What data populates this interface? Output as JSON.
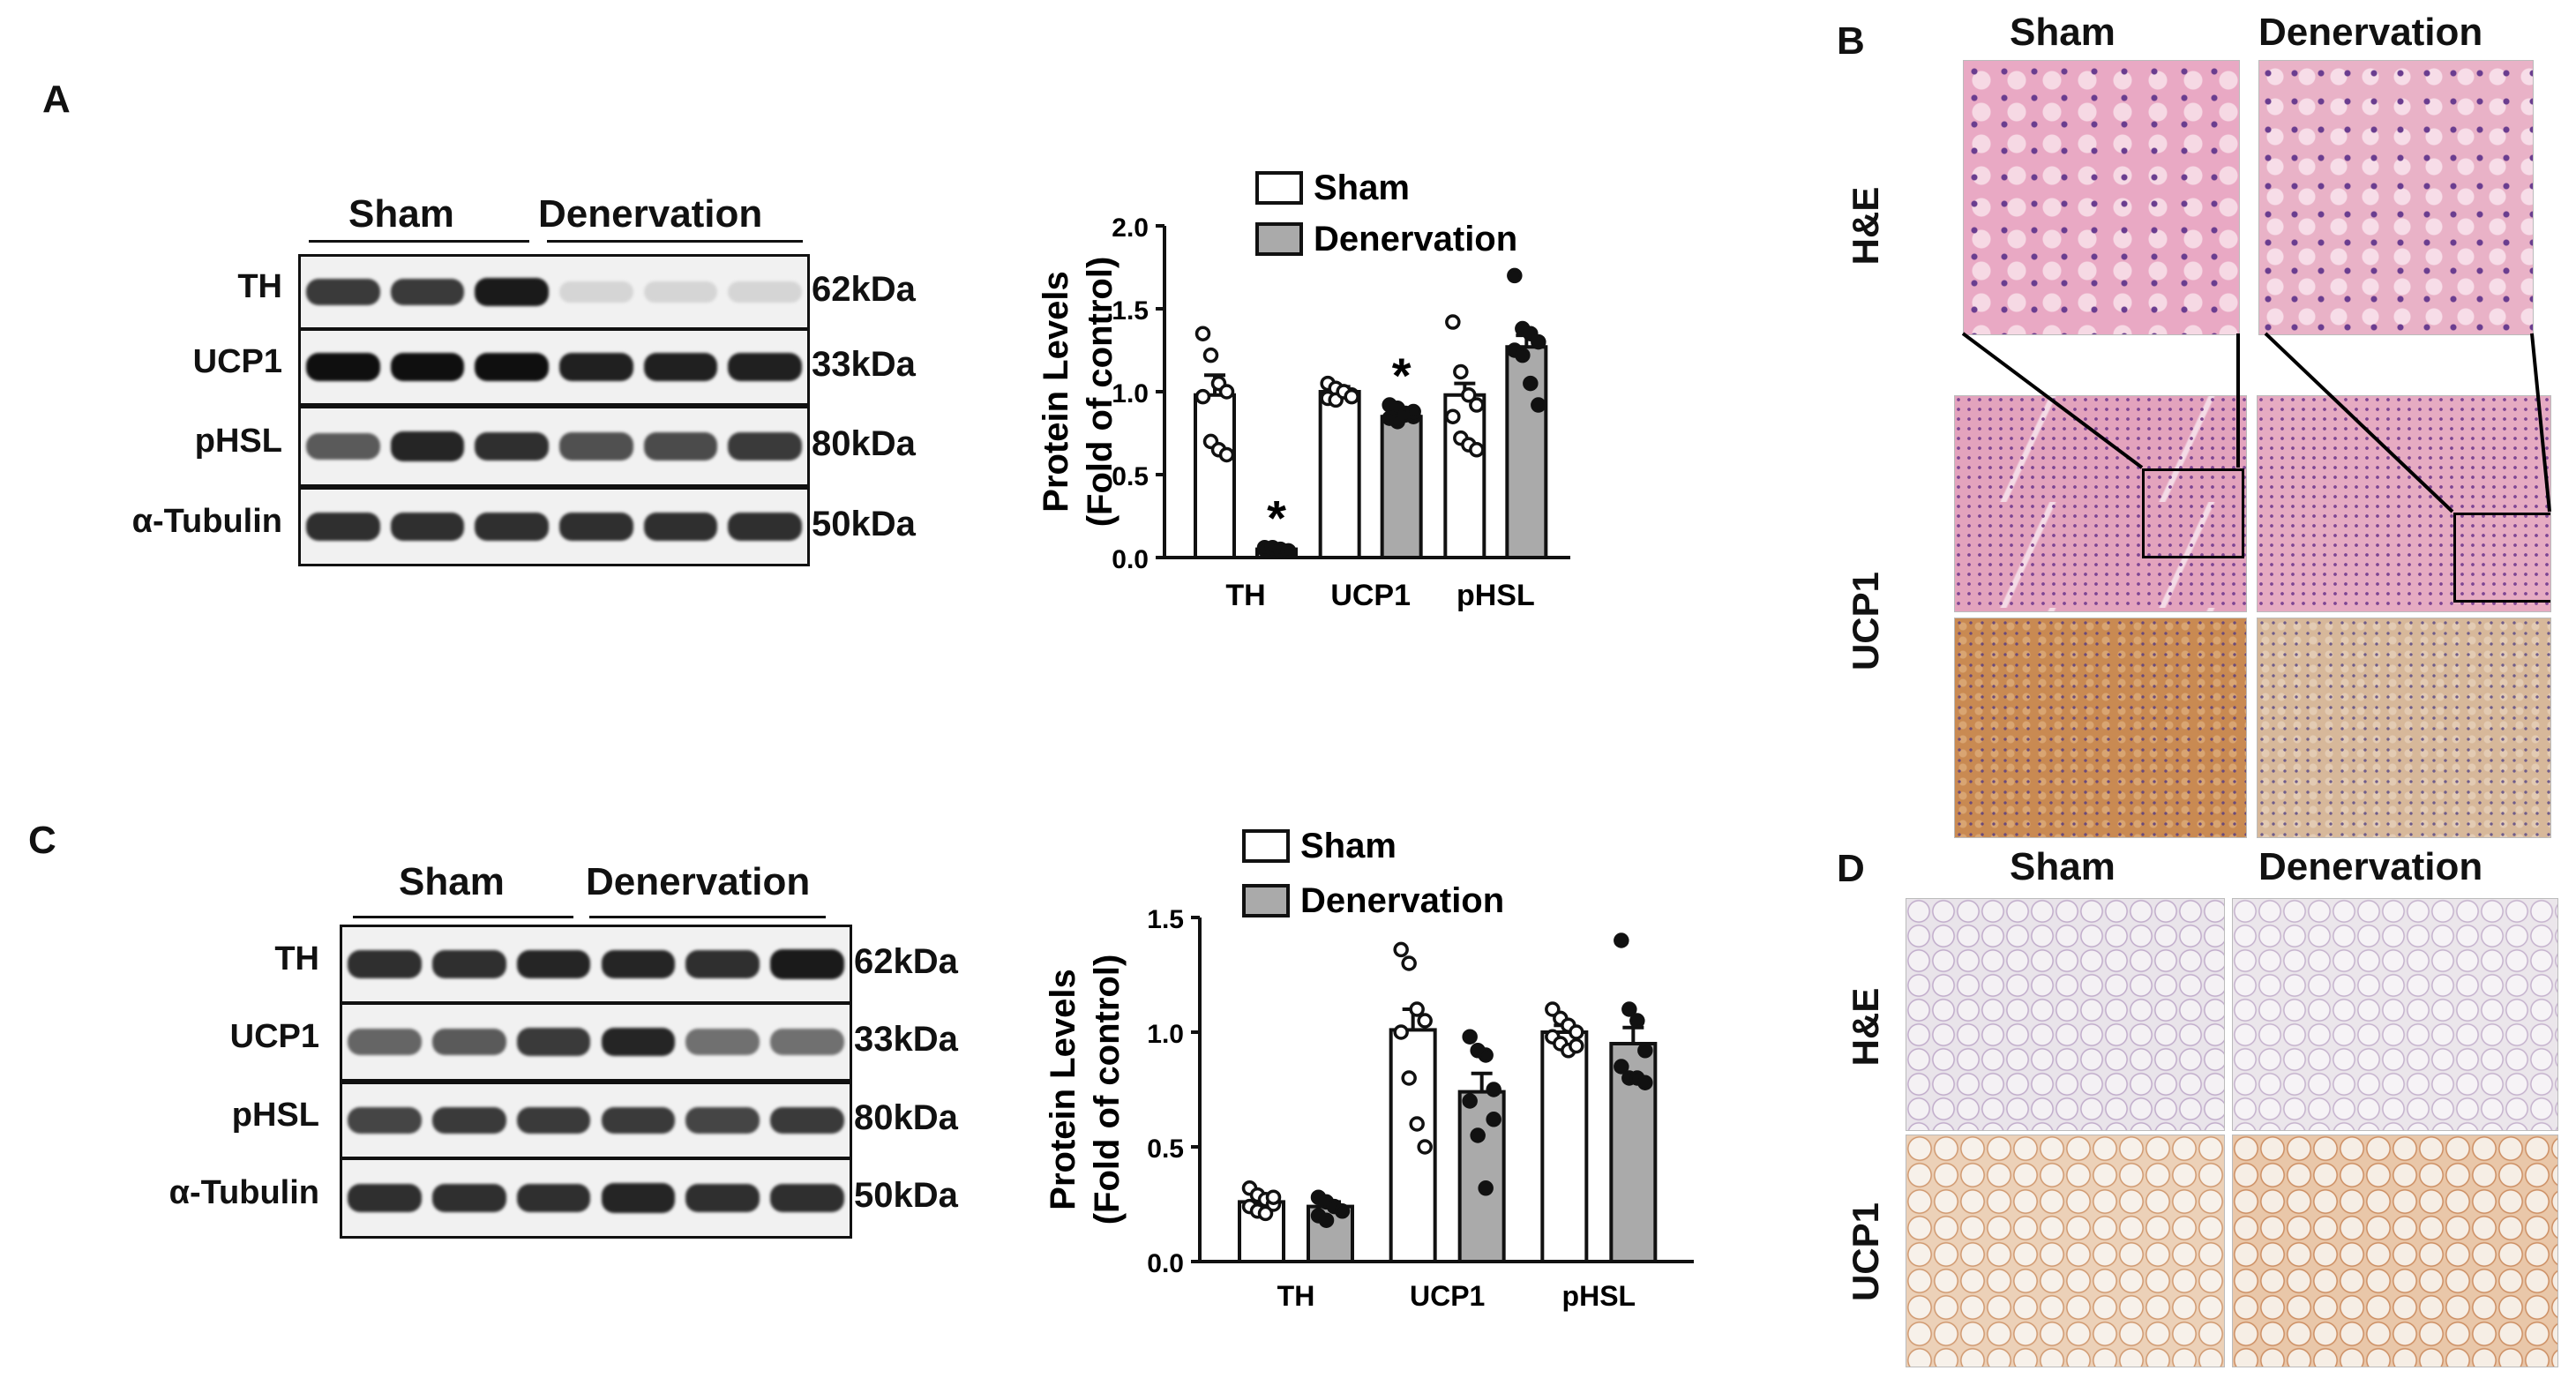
{
  "panels": {
    "A": "A",
    "B": "B",
    "C": "C",
    "D": "D"
  },
  "blotA": {
    "groups": [
      "Sham",
      "Denervation"
    ],
    "rows": [
      {
        "label": "TH",
        "kda": "62kDa",
        "int": [
          0.8,
          0.8,
          0.95,
          0.08,
          0.08,
          0.08
        ]
      },
      {
        "label": "UCP1",
        "kda": "33kDa",
        "int": [
          1,
          1,
          1,
          0.92,
          0.92,
          0.92
        ]
      },
      {
        "label": "pHSL",
        "kda": "80kDa",
        "int": [
          0.65,
          0.9,
          0.85,
          0.7,
          0.72,
          0.8
        ]
      },
      {
        "label": "α-Tubulin",
        "kda": "50kDa",
        "int": [
          0.85,
          0.85,
          0.85,
          0.85,
          0.85,
          0.85
        ]
      }
    ]
  },
  "blotC": {
    "groups": [
      "Sham",
      "Denervation"
    ],
    "rows": [
      {
        "label": "TH",
        "kda": "62kDa",
        "int": [
          0.85,
          0.85,
          0.9,
          0.9,
          0.85,
          0.95
        ]
      },
      {
        "label": "UCP1",
        "kda": "33kDa",
        "int": [
          0.6,
          0.65,
          0.8,
          0.9,
          0.55,
          0.55
        ]
      },
      {
        "label": "pHSL",
        "kda": "80kDa",
        "int": [
          0.75,
          0.8,
          0.8,
          0.8,
          0.75,
          0.8
        ]
      },
      {
        "label": "α-Tubulin",
        "kda": "50kDa",
        "int": [
          0.85,
          0.85,
          0.85,
          0.9,
          0.85,
          0.85
        ]
      }
    ]
  },
  "chart_data": [
    {
      "id": "A",
      "type": "bar",
      "ylabel": "Protein Levels (Fold of control)",
      "ylabel_lines": [
        "Protein Levels",
        "(Fold of control)"
      ],
      "ylim": [
        0,
        2.0
      ],
      "ytick_labels": [
        "0.0",
        "0.5",
        "1.0",
        "1.5",
        "2.0"
      ],
      "categories": [
        "TH",
        "UCP1",
        "pHSL"
      ],
      "legend": [
        "Sham",
        "Denervation"
      ],
      "series": [
        {
          "name": "Sham",
          "color": "#ffffff",
          "values": [
            0.98,
            1.0,
            0.98
          ],
          "errors": [
            0.12,
            0.03,
            0.07
          ],
          "points": [
            [
              1.35,
              1.22,
              1.05,
              1.0,
              0.97,
              0.7,
              0.65,
              0.62
            ],
            [
              1.05,
              1.02,
              1.0,
              0.98,
              0.96,
              0.95,
              1.0,
              0.97
            ],
            [
              1.42,
              1.12,
              0.98,
              0.92,
              0.85,
              0.72,
              0.68,
              0.65
            ]
          ]
        },
        {
          "name": "Denervation",
          "color": "#aaaaaa",
          "values": [
            0.05,
            0.85,
            1.27
          ],
          "errors": [
            0.01,
            0.03,
            0.07
          ],
          "points": [
            [
              0.06,
              0.05,
              0.04,
              0.04,
              0.05,
              0.06,
              0.05,
              0.04
            ],
            [
              0.92,
              0.9,
              0.87,
              0.85,
              0.84,
              0.82,
              0.86,
              0.88
            ],
            [
              1.7,
              1.38,
              1.35,
              1.3,
              1.25,
              1.22,
              1.05,
              0.92
            ]
          ]
        }
      ],
      "significance": [
        "*",
        "*",
        ""
      ]
    },
    {
      "id": "C",
      "type": "bar",
      "ylabel": "Protein Levels (Fold of control)",
      "ylabel_lines": [
        "Protein Levels",
        "(Fold of control)"
      ],
      "ylim": [
        0,
        1.5
      ],
      "ytick_labels": [
        "0.0",
        "0.5",
        "1.0",
        "1.5"
      ],
      "categories": [
        "TH",
        "UCP1",
        "pHSL"
      ],
      "legend": [
        "Sham",
        "Denervation"
      ],
      "series": [
        {
          "name": "Sham",
          "color": "#ffffff",
          "values": [
            0.26,
            1.01,
            1.0
          ],
          "errors": [
            0.02,
            0.09,
            0.03
          ],
          "points": [
            [
              0.32,
              0.29,
              0.27,
              0.25,
              0.24,
              0.22,
              0.21,
              0.28
            ],
            [
              1.36,
              1.3,
              1.1,
              1.05,
              1.0,
              0.8,
              0.6,
              0.5
            ],
            [
              1.1,
              1.06,
              1.03,
              1.0,
              0.98,
              0.95,
              0.92,
              0.94
            ]
          ]
        },
        {
          "name": "Denervation",
          "color": "#aaaaaa",
          "values": [
            0.24,
            0.74,
            0.95
          ],
          "errors": [
            0.02,
            0.08,
            0.07
          ],
          "points": [
            [
              0.28,
              0.26,
              0.24,
              0.22,
              0.2,
              0.18
            ],
            [
              0.98,
              0.92,
              0.9,
              0.75,
              0.7,
              0.55,
              0.32,
              0.62
            ],
            [
              1.4,
              1.1,
              1.05,
              0.92,
              0.85,
              0.8,
              0.8,
              0.78
            ]
          ]
        }
      ],
      "significance": [
        "",
        "",
        ""
      ]
    }
  ],
  "histoB": {
    "cols": [
      "Sham",
      "Denervation"
    ],
    "rows": [
      "H&E",
      "UCP1"
    ]
  },
  "histoD": {
    "cols": [
      "Sham",
      "Denervation"
    ],
    "rows": [
      "H&E",
      "UCP1"
    ]
  }
}
